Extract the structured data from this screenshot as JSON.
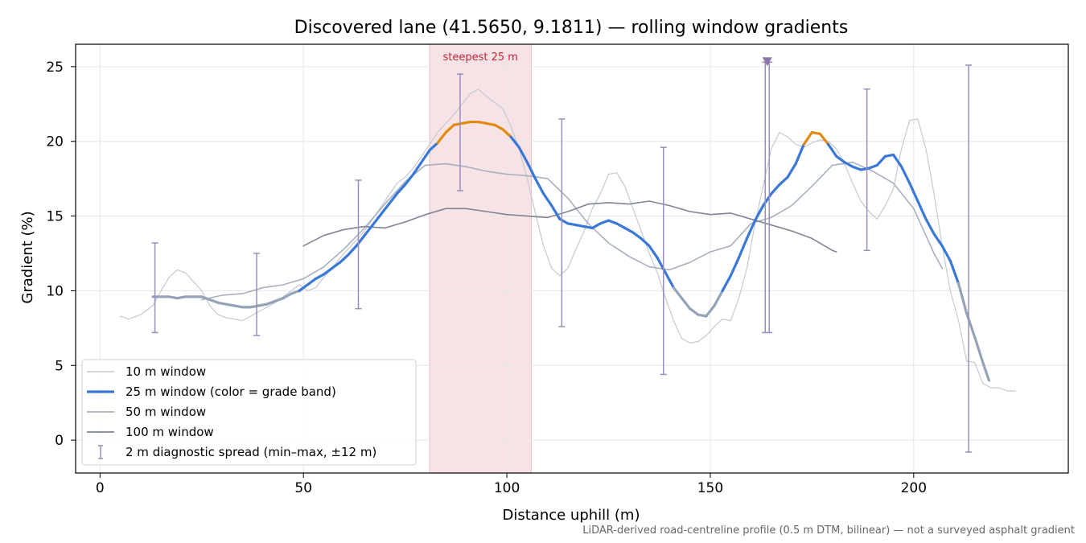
{
  "chart_data": {
    "type": "line",
    "title": "Discovered lane (41.5650, 9.1811) — rolling window gradients",
    "xlabel": "Distance uphill (m)",
    "ylabel": "Gradient (%)",
    "xlim": [
      -6,
      238
    ],
    "ylim": [
      -2.2,
      26.5
    ],
    "x_ticks": [
      0,
      50,
      100,
      150,
      200
    ],
    "y_ticks": [
      0,
      5,
      10,
      15,
      20,
      25
    ],
    "grid": true,
    "legend_position": "lower-left",
    "highlight": {
      "x_range": [
        81,
        106
      ],
      "label": "steepest 25 m",
      "color": "#d9808a"
    },
    "marker": {
      "x": 164,
      "y": 25.3,
      "shape": "triangle-down",
      "color": "#8a76a8"
    },
    "footnote": "LiDAR-derived road-centreline profile (0.5 m DTM, bilinear) — not a surveyed asphalt gradient",
    "series": [
      {
        "name": "10 m window",
        "color": "#c4c9d2",
        "width": 1.2,
        "x": [
          5,
          7,
          10,
          13,
          15,
          17,
          19,
          21,
          23,
          25,
          27,
          29,
          31,
          33,
          35,
          37,
          39,
          41,
          43,
          45,
          47,
          49,
          51,
          53,
          55,
          57,
          59,
          61,
          63,
          65,
          67,
          69,
          71,
          73,
          75,
          77,
          79,
          81,
          83,
          85,
          87,
          89,
          91,
          93,
          95,
          97,
          99,
          101,
          103,
          105,
          107,
          109,
          111,
          113,
          115,
          117,
          119,
          121,
          123,
          125,
          127,
          129,
          131,
          133,
          135,
          137,
          139,
          141,
          143,
          145,
          147,
          149,
          151,
          153,
          155,
          157,
          159,
          161,
          163,
          165,
          167,
          169,
          171,
          173,
          175,
          177,
          179,
          181,
          183,
          185,
          187,
          189,
          191,
          193,
          195,
          197,
          199,
          201,
          203,
          205,
          207,
          209,
          211,
          213,
          215,
          217,
          219,
          221,
          223,
          225
        ],
        "y": [
          8.3,
          8.1,
          8.4,
          9.0,
          10.0,
          10.9,
          11.4,
          11.2,
          10.6,
          10.0,
          9.0,
          8.4,
          8.2,
          8.1,
          8.0,
          8.3,
          8.6,
          8.9,
          9.2,
          9.6,
          10.0,
          10.4,
          10.0,
          10.2,
          10.9,
          11.5,
          12.2,
          12.8,
          13.4,
          14.0,
          14.8,
          15.6,
          16.4,
          17.2,
          17.6,
          18.2,
          19.0,
          19.8,
          20.6,
          21.2,
          21.8,
          22.5,
          23.2,
          23.5,
          23.0,
          22.6,
          22.2,
          21.0,
          19.5,
          17.5,
          15.2,
          13.0,
          11.5,
          11.0,
          11.5,
          12.8,
          14.0,
          15.5,
          16.5,
          17.8,
          17.9,
          17.0,
          15.5,
          14.0,
          12.5,
          11.2,
          9.5,
          8.0,
          6.8,
          6.5,
          6.6,
          7.0,
          7.6,
          8.1,
          8.0,
          9.5,
          11.5,
          14.5,
          17.0,
          19.5,
          20.6,
          20.3,
          19.8,
          19.6,
          19.9,
          20.1,
          20.0,
          19.5,
          18.5,
          17.2,
          16.0,
          15.3,
          14.8,
          15.7,
          16.8,
          19.5,
          21.4,
          21.5,
          19.5,
          16.5,
          13.0,
          10.0,
          8.0,
          5.3,
          5.2,
          3.8,
          3.5,
          3.5,
          3.3,
          3.3
        ]
      },
      {
        "name": "25 m window (color = grade band)",
        "color": "#3a78d8",
        "width": 3.2,
        "x": [
          13,
          15,
          17,
          19,
          21,
          23,
          25,
          27,
          29,
          31,
          33,
          35,
          37,
          39,
          41,
          43,
          45,
          47,
          49,
          51,
          53,
          55,
          57,
          59,
          61,
          63,
          65,
          67,
          69,
          71,
          73,
          75,
          77,
          79,
          81,
          83,
          85,
          87,
          89,
          91,
          93,
          95,
          97,
          99,
          101,
          103,
          105,
          107,
          109,
          111,
          113,
          115,
          117,
          119,
          121,
          123,
          125,
          127,
          129,
          131,
          133,
          135,
          137,
          139,
          141,
          143,
          145,
          147,
          149,
          151,
          153,
          155,
          157,
          159,
          161,
          163,
          165,
          167,
          169,
          171,
          173,
          175,
          177,
          179,
          181,
          183,
          185,
          187,
          189,
          191,
          193,
          195,
          197,
          199,
          201,
          203,
          205,
          207,
          209,
          211,
          213,
          215,
          217,
          218.5
        ],
        "y": [
          9.6,
          9.6,
          9.6,
          9.5,
          9.6,
          9.6,
          9.6,
          9.4,
          9.2,
          9.1,
          9.0,
          8.9,
          8.9,
          9.0,
          9.1,
          9.3,
          9.5,
          9.8,
          10.0,
          10.4,
          10.8,
          11.1,
          11.5,
          11.9,
          12.4,
          13.0,
          13.7,
          14.4,
          15.1,
          15.8,
          16.5,
          17.1,
          17.8,
          18.6,
          19.4,
          19.9,
          20.6,
          21.1,
          21.2,
          21.3,
          21.3,
          21.2,
          21.1,
          20.8,
          20.3,
          19.6,
          18.6,
          17.5,
          16.5,
          15.7,
          14.8,
          14.5,
          14.4,
          14.3,
          14.2,
          14.5,
          14.7,
          14.5,
          14.2,
          13.9,
          13.5,
          13.0,
          12.2,
          11.2,
          10.2,
          9.5,
          8.8,
          8.4,
          8.3,
          9.0,
          10.0,
          11.0,
          12.2,
          13.5,
          14.7,
          15.7,
          16.5,
          17.1,
          17.6,
          18.5,
          19.8,
          20.6,
          20.5,
          19.8,
          19.0,
          18.6,
          18.3,
          18.1,
          18.2,
          18.4,
          19.0,
          19.1,
          18.3,
          17.2,
          16.0,
          14.8,
          13.8,
          13.0,
          12.0,
          10.5,
          8.5,
          6.9,
          5.2,
          4.0
        ]
      },
      {
        "name": "50 m window",
        "color": "#a8b0c0",
        "width": 1.6,
        "x": [
          25,
          30,
          35,
          40,
          45,
          50,
          55,
          60,
          65,
          70,
          75,
          80,
          85,
          90,
          95,
          100,
          105,
          110,
          115,
          120,
          125,
          130,
          135,
          140,
          145,
          150,
          155,
          160,
          165,
          170,
          175,
          180,
          185,
          190,
          195,
          200,
          205,
          207
        ],
        "y": [
          9.4,
          9.7,
          9.8,
          10.2,
          10.4,
          10.8,
          11.6,
          12.8,
          14.2,
          15.8,
          17.3,
          18.4,
          18.5,
          18.3,
          18.0,
          17.8,
          17.7,
          17.5,
          16.2,
          14.5,
          13.2,
          12.3,
          11.6,
          11.4,
          11.9,
          12.6,
          13.0,
          14.5,
          14.9,
          15.7,
          17.0,
          18.4,
          18.6,
          18.0,
          17.2,
          15.5,
          12.5,
          11.5
        ]
      },
      {
        "name": "100 m window",
        "color": "#7e8596",
        "width": 1.6,
        "x": [
          50,
          55,
          60,
          65,
          70,
          75,
          80,
          85,
          90,
          95,
          100,
          105,
          110,
          115,
          120,
          125,
          130,
          135,
          140,
          145,
          150,
          155,
          160,
          165,
          170,
          175,
          180,
          181
        ],
        "y": [
          13.0,
          13.7,
          14.1,
          14.3,
          14.2,
          14.6,
          15.1,
          15.5,
          15.5,
          15.3,
          15.1,
          15.0,
          14.9,
          15.3,
          15.8,
          15.9,
          15.8,
          16.0,
          15.7,
          15.3,
          15.1,
          15.2,
          14.8,
          14.4,
          14.0,
          13.5,
          12.7,
          12.6
        ]
      }
    ],
    "diagnostic_spread": {
      "name": "2 m diagnostic spread (min–max, ±12 m)",
      "color": "#9a8fba",
      "bars": [
        {
          "x": 13.5,
          "low": 7.2,
          "high": 13.2
        },
        {
          "x": 38.5,
          "low": 7.0,
          "high": 12.5
        },
        {
          "x": 63.5,
          "low": 8.8,
          "high": 17.4
        },
        {
          "x": 88.5,
          "low": 16.7,
          "high": 24.5
        },
        {
          "x": 113.5,
          "low": 7.6,
          "high": 21.5
        },
        {
          "x": 138.5,
          "low": 4.4,
          "high": 19.6
        },
        {
          "x": 163.5,
          "low": 7.2,
          "high": 25.3
        },
        {
          "x": 164.5,
          "low": 7.2,
          "high": 25.3
        },
        {
          "x": 188.5,
          "low": 12.7,
          "high": 23.5
        },
        {
          "x": 213.5,
          "low": -0.8,
          "high": 25.1
        }
      ]
    }
  }
}
